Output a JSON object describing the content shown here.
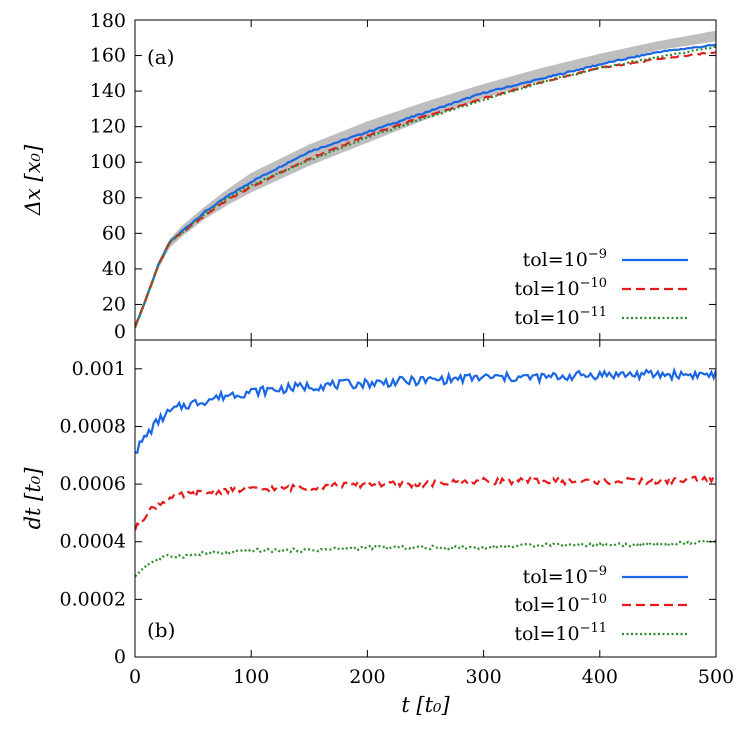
{
  "chart_data": [
    {
      "type": "line",
      "panel_tag": "(a)",
      "ylabel": "Δx [x₀]",
      "xlim": [
        0,
        500
      ],
      "ylim": [
        0,
        180
      ],
      "yticks": [
        0,
        20,
        40,
        60,
        80,
        100,
        120,
        140,
        160,
        180
      ],
      "yticklabels": [
        "0",
        "20",
        "40",
        "60",
        "80",
        "100",
        "120",
        "140",
        "160",
        "180"
      ],
      "band": {
        "color": "#b3b3b3",
        "x": [
          0,
          10,
          20,
          30,
          40,
          60,
          80,
          100,
          150,
          200,
          250,
          300,
          350,
          400,
          450,
          500
        ],
        "low": [
          6,
          22,
          40,
          52,
          58,
          68,
          76,
          83,
          98,
          111,
          124,
          136,
          146,
          155,
          163,
          168
        ],
        "high": [
          9,
          26,
          44,
          57,
          64,
          75,
          85,
          94,
          110,
          123,
          134,
          144,
          153,
          161,
          168,
          174
        ]
      },
      "legend_position": "bottom-right",
      "series": [
        {
          "name": "tol=10⁻⁹",
          "label_base": "tol=10",
          "label_exp": "−9",
          "color": "#1a66e6",
          "dash": "solid",
          "x": [
            0,
            10,
            20,
            30,
            40,
            60,
            80,
            100,
            150,
            200,
            250,
            300,
            350,
            400,
            450,
            500
          ],
          "y": [
            7,
            24,
            42,
            55,
            61,
            72,
            81,
            89,
            106,
            117,
            128,
            139,
            147,
            155,
            162,
            166
          ]
        },
        {
          "name": "tol=10⁻¹⁰",
          "label_base": "tol=10",
          "label_exp": "−10",
          "color": "#e61a1a",
          "dash": "dashed",
          "x": [
            0,
            10,
            20,
            30,
            40,
            60,
            80,
            100,
            150,
            200,
            250,
            300,
            350,
            400,
            450,
            500
          ],
          "y": [
            7,
            24,
            42,
            55,
            60,
            70,
            79,
            86,
            102,
            115,
            126,
            136,
            145,
            153,
            158,
            162
          ]
        },
        {
          "name": "tol=10⁻¹¹",
          "label_base": "tol=10",
          "label_exp": "−11",
          "color": "#2e8b2e",
          "dash": "dotted",
          "x": [
            0,
            10,
            20,
            30,
            40,
            60,
            80,
            100,
            150,
            200,
            250,
            300,
            350,
            400,
            450,
            500
          ],
          "y": [
            7,
            24,
            42,
            55,
            60,
            71,
            80,
            87,
            101,
            114,
            125,
            135,
            145,
            153,
            159,
            165
          ]
        }
      ]
    },
    {
      "type": "line",
      "panel_tag": "(b)",
      "xlabel": "t [t₀]",
      "ylabel": "dt [t₀]",
      "xlim": [
        0,
        500
      ],
      "ylim": [
        0,
        0.0011
      ],
      "xticks": [
        0,
        100,
        200,
        300,
        400,
        500
      ],
      "xticklabels": [
        "0",
        "100",
        "200",
        "300",
        "400",
        "500"
      ],
      "yticks": [
        0,
        0.0002,
        0.0004,
        0.0006,
        0.0008,
        0.001
      ],
      "yticklabels": [
        "0",
        "0.0002",
        "0.0004",
        "0.0006",
        "0.0008",
        "0.001"
      ],
      "legend_position": "bottom-right",
      "series": [
        {
          "name": "tol=10⁻⁹",
          "label_base": "tol=10",
          "label_exp": "−9",
          "color": "#1a66e6",
          "dash": "solid",
          "x": [
            0,
            5,
            10,
            20,
            30,
            40,
            60,
            80,
            100,
            150,
            200,
            250,
            300,
            350,
            400,
            450,
            500
          ],
          "y": [
            0.00071,
            0.00074,
            0.00077,
            0.00082,
            0.00085,
            0.00087,
            0.00089,
            0.00091,
            0.00092,
            0.00094,
            0.00095,
            0.00096,
            0.00097,
            0.00097,
            0.00098,
            0.00098,
            0.00098
          ]
        },
        {
          "name": "tol=10⁻¹⁰",
          "label_base": "tol=10",
          "label_exp": "−10",
          "color": "#e61a1a",
          "dash": "dashed",
          "x": [
            0,
            5,
            10,
            20,
            30,
            40,
            60,
            80,
            100,
            150,
            200,
            250,
            300,
            350,
            400,
            450,
            500
          ],
          "y": [
            0.00044,
            0.00047,
            0.0005,
            0.00053,
            0.00055,
            0.00056,
            0.00057,
            0.00058,
            0.00058,
            0.00059,
            0.0006,
            0.0006,
            0.00061,
            0.00061,
            0.00061,
            0.00061,
            0.00062
          ]
        },
        {
          "name": "tol=10⁻¹¹",
          "label_base": "tol=10",
          "label_exp": "−11",
          "color": "#2e8b2e",
          "dash": "dotted",
          "x": [
            0,
            5,
            10,
            20,
            30,
            40,
            60,
            80,
            100,
            150,
            200,
            250,
            300,
            350,
            400,
            450,
            500
          ],
          "y": [
            0.00028,
            0.0003,
            0.00032,
            0.00034,
            0.00035,
            0.00035,
            0.00036,
            0.00036,
            0.00037,
            0.00037,
            0.00038,
            0.00038,
            0.00038,
            0.00039,
            0.00039,
            0.00039,
            0.0004
          ]
        }
      ]
    }
  ]
}
